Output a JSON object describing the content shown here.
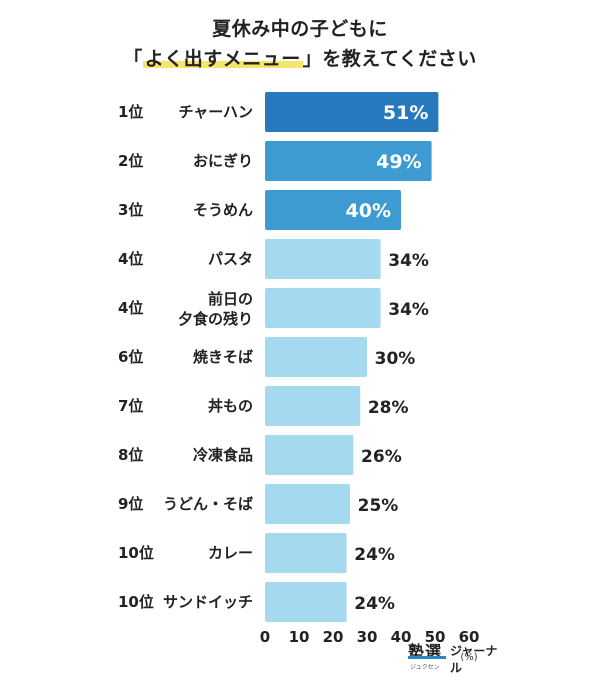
{
  "title": {
    "line1": "夏休み中の子どもに",
    "line2_open": "「",
    "line2_highlight": "よく出すメニュー",
    "line2_close": "」を教えてください"
  },
  "logo": {
    "mark": "塾選",
    "small": "ジュクセン",
    "text": "ジャーナル"
  },
  "chart_data": {
    "type": "bar",
    "orientation": "horizontal",
    "title": "夏休み中の子どもに「よく出すメニュー」を教えてください",
    "xlabel": "(%)",
    "ylabel": "",
    "xlim": [
      0,
      60
    ],
    "xticks": [
      "0",
      "10",
      "20",
      "30",
      "40",
      "50",
      "60"
    ],
    "unit_label": "(%)",
    "grid": false,
    "ranks": [
      "1位",
      "2位",
      "3位",
      "4位",
      "4位",
      "6位",
      "7位",
      "8位",
      "9位",
      "10位",
      "10位"
    ],
    "categories": [
      [
        "チャーハン"
      ],
      [
        "おにぎり"
      ],
      [
        "そうめん"
      ],
      [
        "パスタ"
      ],
      [
        "前日の",
        "夕食の残り"
      ],
      [
        "焼きそば"
      ],
      [
        "丼もの"
      ],
      [
        "冷凍食品"
      ],
      [
        "うどん・そば"
      ],
      [
        "カレー"
      ],
      [
        "サンドイッチ"
      ]
    ],
    "values": [
      51,
      49,
      40,
      34,
      34,
      30,
      28,
      26,
      25,
      24,
      24
    ],
    "value_labels": [
      "51%",
      "49%",
      "40%",
      "34%",
      "34%",
      "30%",
      "28%",
      "26%",
      "25%",
      "24%",
      "24%"
    ],
    "colors": {
      "top1": "#2878bd",
      "top2_3": "#3d9bd1",
      "rest": "#a5d9ef",
      "inside_text": "#ffffff",
      "outside_text": "#222222",
      "highlight": "#f7e46b"
    }
  }
}
